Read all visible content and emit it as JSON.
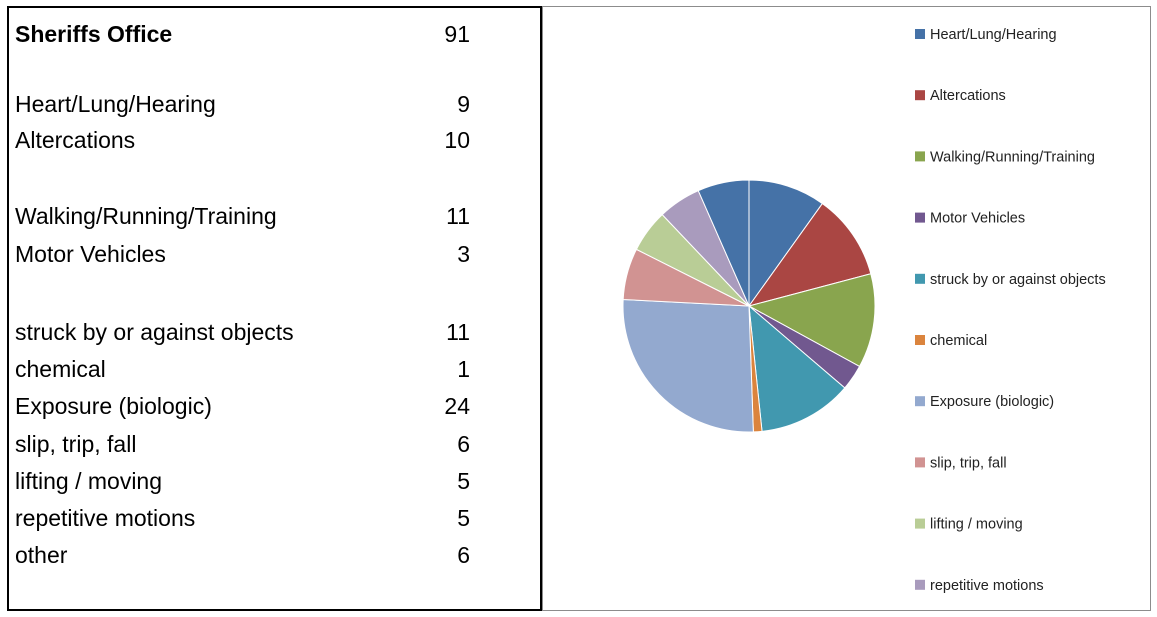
{
  "table": {
    "header": {
      "label": "Sheriffs Office",
      "value": "91"
    },
    "rows": [
      {
        "label": "Heart/Lung/Hearing",
        "value": "9"
      },
      {
        "label": "Altercations",
        "value": "10"
      },
      {
        "label": "Walking/Running/Training",
        "value": "11"
      },
      {
        "label": "Motor Vehicles",
        "value": "3"
      },
      {
        "label": "struck by or against objects",
        "value": "11"
      },
      {
        "label": "chemical",
        "value": "1"
      },
      {
        "label": "Exposure (biologic)",
        "value": "24"
      },
      {
        "label": "slip, trip, fall",
        "value": "6"
      },
      {
        "label": "lifting / moving",
        "value": "5"
      },
      {
        "label": "repetitive motions",
        "value": "5"
      },
      {
        "label": "other",
        "value": "6"
      }
    ]
  },
  "chart_data": {
    "type": "pie",
    "title": "",
    "legend_position": "right",
    "categories": [
      "Heart/Lung/Hearing",
      "Altercations",
      "Walking/Running/Training",
      "Motor Vehicles",
      "struck by or against objects",
      "chemical",
      "Exposure (biologic)",
      "slip, trip, fall",
      "lifting / moving",
      "repetitive motions",
      "other"
    ],
    "values": [
      9,
      10,
      11,
      3,
      11,
      1,
      24,
      6,
      5,
      5,
      6
    ],
    "colors": [
      "#4572a7",
      "#aa4643",
      "#89a54e",
      "#71588f",
      "#4198af",
      "#db843d",
      "#93a9cf",
      "#d19392",
      "#b9cd96",
      "#a99bbd",
      "#4572a7"
    ],
    "legend_entries": [
      "Heart/Lung/Hearing",
      "Altercations",
      "Walking/Running/Training",
      "Motor Vehicles",
      "struck by or against objects",
      "chemical",
      "Exposure (biologic)",
      "slip, trip, fall",
      "lifting / moving",
      "repetitive motions"
    ]
  }
}
